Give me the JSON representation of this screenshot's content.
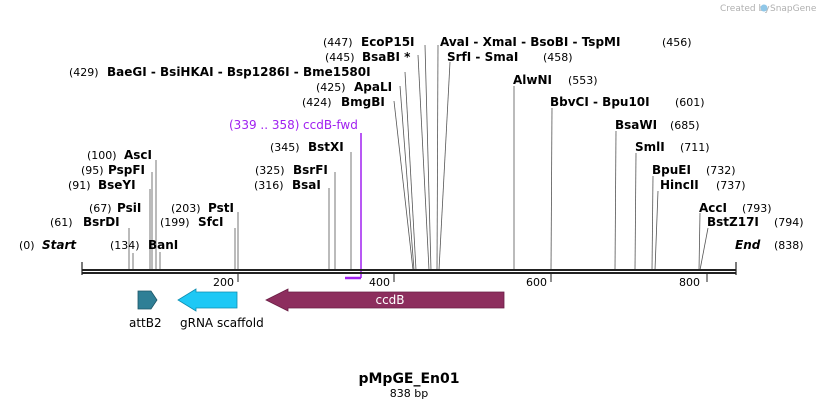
{
  "credit": {
    "text": "Created by",
    "brand": "SnapGene"
  },
  "map": {
    "name": "pMpGE_En01",
    "size_label": "838 bp",
    "start_label": "Start",
    "start_pos": "(0)",
    "end_label": "End",
    "end_pos": "(838)"
  },
  "ticks": [
    "200",
    "400",
    "600",
    "800"
  ],
  "primer": {
    "range": "(339 .. 358)",
    "name": "ccdB-fwd"
  },
  "sites": {
    "asci": {
      "pos": "(100)",
      "name": "AscI"
    },
    "pspfi": {
      "pos": "(95)",
      "name": "PspFI"
    },
    "bseyi": {
      "pos": "(91)",
      "name": "BseYI"
    },
    "psii": {
      "pos": "(67)",
      "name": "PsiI"
    },
    "bsrdi": {
      "pos": "(61)",
      "name": "BsrDI"
    },
    "bani": {
      "pos": "(134)",
      "name": "BanI"
    },
    "psti": {
      "pos": "(203)",
      "name": "PstI"
    },
    "sfci": {
      "pos": "(199)",
      "name": "SfcI"
    },
    "bsrfi": {
      "pos": "(325)",
      "name": "BsrFI"
    },
    "bsai": {
      "pos": "(316)",
      "name": "BsaI"
    },
    "bstxi": {
      "pos": "(345)",
      "name": "BstXI"
    },
    "bmgbi": {
      "pos": "(424)",
      "name": "BmgBI"
    },
    "apali": {
      "pos": "(425)",
      "name": "ApaLI"
    },
    "baegi": {
      "pos": "(429)",
      "name": "BaeGI - BsiHKAI - Bsp1286I - Bme1580I"
    },
    "bsabi": {
      "pos": "(445)",
      "name": "BsaBI *"
    },
    "ecop15i": {
      "pos": "(447)",
      "name": "EcoP15I"
    },
    "avai": {
      "name": "AvaI - XmaI - BsoBI - TspMI",
      "pos": "(456)"
    },
    "srfi": {
      "name": "SrfI - SmaI",
      "pos": "(458)"
    },
    "alwni": {
      "name": "AlwNI",
      "pos": "(553)"
    },
    "bbvci": {
      "name": "BbvCI - Bpu10I",
      "pos": "(601)"
    },
    "bsawi": {
      "name": "BsaWI",
      "pos": "(685)"
    },
    "smli": {
      "name": "SmlI",
      "pos": "(711)"
    },
    "bpuei": {
      "name": "BpuEI",
      "pos": "(732)"
    },
    "hincii": {
      "name": "HincII",
      "pos": "(737)"
    },
    "acci": {
      "name": "AccI",
      "pos": "(793)"
    },
    "bstz17i": {
      "name": "BstZ17I",
      "pos": "(794)"
    }
  },
  "features": {
    "attb2": {
      "name": "attB2",
      "color": "#2f7f96"
    },
    "grna": {
      "name": "gRNA scaffold",
      "color": "#1ec8f5"
    },
    "ccdb": {
      "name": "ccdB",
      "color": "#8d2e5e"
    }
  }
}
